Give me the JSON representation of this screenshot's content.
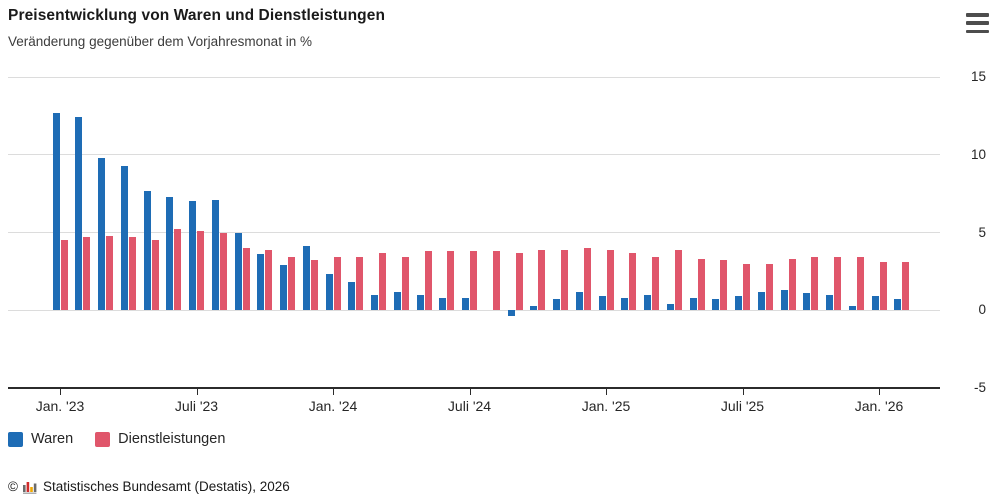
{
  "header": {
    "title": "Preisentwicklung von Waren und Dienstleistungen",
    "subtitle": "Veränderung gegenüber dem Vorjahresmonat in %"
  },
  "menu": {
    "icon": "hamburger-icon"
  },
  "footer": {
    "copyright": "©",
    "logo_icon": "destatis-bar-chart-logo",
    "source": "Statistisches Bundesamt (Destatis), 2026"
  },
  "colors": {
    "waren": "#1e6cb5",
    "dienstleistungen": "#e0566b",
    "gridline": "#dcdcdc",
    "axis": "#2b2b2b",
    "text": "#262626"
  },
  "chart_data": {
    "type": "bar",
    "title": "Preisentwicklung von Waren und Dienstleistungen",
    "subtitle": "Veränderung gegenüber dem Vorjahresmonat in %",
    "unit": "%",
    "ylim": [
      -5,
      15
    ],
    "y_gridlines": [
      15,
      10,
      5,
      0,
      -5
    ],
    "grid": true,
    "legend_position": "bottom-left",
    "categories": [
      "Jan. '23",
      "Feb. '23",
      "März '23",
      "Apr. '23",
      "Mai '23",
      "Juni '23",
      "Juli '23",
      "Aug. '23",
      "Sep. '23",
      "Okt. '23",
      "Nov. '23",
      "Dez. '23",
      "Jan. '24",
      "Feb. '24",
      "März '24",
      "Apr. '24",
      "Mai '24",
      "Juni '24",
      "Juli '24",
      "Aug. '24",
      "Sep. '24",
      "Okt. '24",
      "Nov. '24",
      "Dez. '24",
      "Jan. '25",
      "Feb. '25",
      "März '25",
      "Apr. '25",
      "Mai '25",
      "Juni '25",
      "Juli '25",
      "Aug. '25",
      "Sep. '25",
      "Okt. '25",
      "Nov. '25",
      "Dez. '25",
      "Jan. '26",
      "Feb. '26"
    ],
    "x_ticks": [
      {
        "label": "Jan. '23",
        "index": 0
      },
      {
        "label": "Juli '23",
        "index": 6
      },
      {
        "label": "Jan. '24",
        "index": 12
      },
      {
        "label": "Juli '24",
        "index": 18
      },
      {
        "label": "Jan. '25",
        "index": 24
      },
      {
        "label": "Juli '25",
        "index": 30
      },
      {
        "label": "Jan. '26",
        "index": 36
      }
    ],
    "series": [
      {
        "name": "Waren",
        "color": "#1e6cb5",
        "values": [
          12.7,
          12.4,
          9.8,
          9.3,
          7.7,
          7.3,
          7.0,
          7.1,
          5.0,
          3.6,
          2.9,
          4.1,
          2.3,
          1.8,
          1.0,
          1.2,
          1.0,
          0.8,
          0.8,
          0.0,
          -0.4,
          0.3,
          0.7,
          1.2,
          0.9,
          0.8,
          1.0,
          0.4,
          0.8,
          0.7,
          0.9,
          1.2,
          1.3,
          1.1,
          1.0,
          0.3,
          0.9,
          0.7
        ]
      },
      {
        "name": "Dienstleistungen",
        "color": "#e0566b",
        "values": [
          4.5,
          4.7,
          4.8,
          4.7,
          4.5,
          5.2,
          5.1,
          5.0,
          4.0,
          3.9,
          3.4,
          3.2,
          3.4,
          3.4,
          3.7,
          3.4,
          3.8,
          3.8,
          3.8,
          3.8,
          3.7,
          3.9,
          3.9,
          4.0,
          3.9,
          3.7,
          3.4,
          3.9,
          3.3,
          3.2,
          3.0,
          3.0,
          3.3,
          3.4,
          3.4,
          3.4,
          3.1,
          3.1
        ]
      }
    ]
  }
}
